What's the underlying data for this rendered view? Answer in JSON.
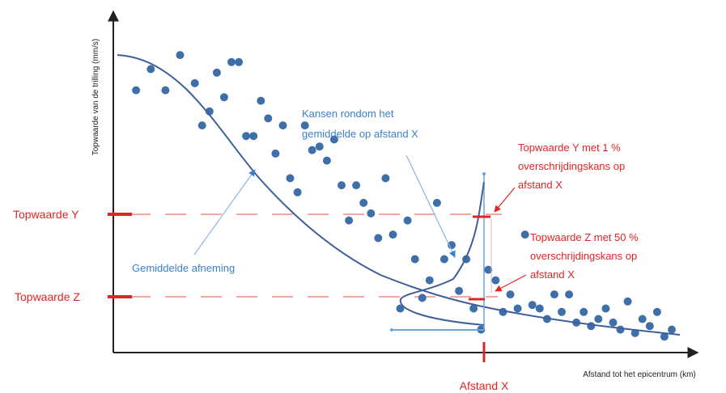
{
  "chart_data": {
    "type": "scatter",
    "ylabel": "Topwaarde van de trilling (mm/s)",
    "xlabel": "Afstand tot het epicentrum (km)",
    "x": [
      2,
      4,
      6,
      8,
      10,
      11,
      12,
      13,
      14,
      15,
      16,
      17,
      18,
      19,
      20,
      21,
      22,
      23,
      24,
      25,
      26,
      27,
      28,
      29,
      30,
      31,
      32,
      33,
      34,
      35,
      36,
      37,
      38,
      39,
      40,
      41,
      42,
      43,
      44,
      45,
      46,
      47,
      48,
      49,
      50,
      51,
      52,
      53,
      54,
      55,
      56,
      57,
      58,
      59,
      60,
      61,
      62,
      63,
      64,
      65,
      66,
      67,
      68,
      69,
      70,
      71,
      72,
      73,
      74,
      75
    ],
    "y": [
      0.72,
      0.78,
      0.72,
      0.82,
      0.74,
      0.62,
      0.66,
      0.77,
      0.7,
      0.8,
      0.8,
      0.59,
      0.59,
      0.69,
      0.64,
      0.54,
      0.62,
      0.47,
      0.43,
      0.62,
      0.55,
      0.56,
      0.52,
      0.58,
      0.45,
      0.35,
      0.45,
      0.4,
      0.37,
      0.3,
      0.47,
      0.31,
      0.1,
      0.35,
      0.24,
      0.13,
      0.18,
      0.4,
      0.24,
      0.28,
      0.15,
      0.24,
      0.1,
      0.04,
      0.21,
      0.18,
      0.09,
      0.14,
      0.1,
      0.31,
      0.11,
      0.1,
      0.07,
      0.14,
      0.09,
      0.14,
      0.06,
      0.09,
      0.05,
      0.07,
      0.1,
      0.06,
      0.04,
      0.12,
      0.03,
      0.07,
      0.05,
      0.09,
      0.02,
      0.04
    ],
    "trend_label": "Gemiddelde afneming",
    "annotation_distribution": "Kansen rondom het gemiddelde op afstand X",
    "annotation_y": "Topwaarde Y met 1 % overschrijdingskans op afstand X",
    "annotation_z": "Topwaarde Z met 50 % overschrijdingskans op afstand X",
    "level_y_label": "Topwaarde Y",
    "level_z_label": "Topwaarde Z",
    "distance_label": "Afstand X",
    "level_y": 0.41,
    "level_z": 0.16,
    "distance_x": 63
  },
  "colors": {
    "points": "#3f6fa8",
    "trend": "#3f5f9a",
    "annotation_red": "#e02424",
    "annotation_blue": "#3c7fc9"
  }
}
